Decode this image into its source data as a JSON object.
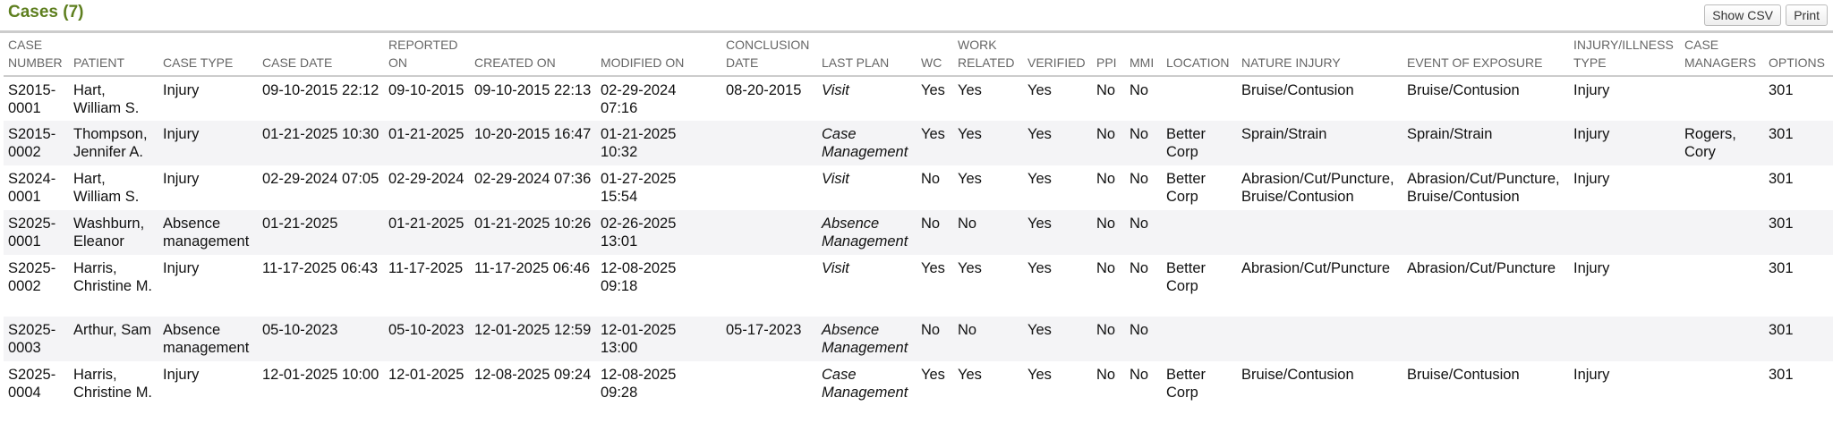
{
  "header": {
    "title": "Cases (7)",
    "buttons": [
      "Show CSV",
      "Print"
    ]
  },
  "table": {
    "columns": [
      "CASE NUMBER",
      "PATIENT",
      "CASE TYPE",
      "CASE DATE",
      "REPORTED ON",
      "CREATED ON",
      "MODIFIED ON",
      "CONCLUSION DATE",
      "LAST PLAN",
      "WC",
      "WORK RELATED",
      "VERIFIED",
      "PPI",
      "MMI",
      "LOCATION",
      "NATURE INJURY",
      "EVENT OF EXPOSURE",
      "INJURY/ILLNESS TYPE",
      "CASE MANAGERS",
      "OPTIONS"
    ],
    "rows": [
      [
        "S2015-0001",
        "Hart, William S.",
        "Injury",
        "09-10-2015 22:12",
        "09-10-2015",
        "09-10-2015 22:13",
        "02-29-2024 07:16",
        "08-20-2015",
        "Visit",
        "Yes",
        "Yes",
        "Yes",
        "No",
        "No",
        null,
        "Bruise/Contusion",
        "Bruise/Contusion",
        "Injury",
        null,
        "301"
      ],
      [
        "S2015-0002",
        "Thompson, Jennifer A.",
        "Injury",
        "01-21-2025 10:30",
        "01-21-2025",
        "10-20-2015 16:47",
        "01-21-2025 10:32",
        null,
        "Case Management",
        "Yes",
        "Yes",
        "Yes",
        "No",
        "No",
        "Better Corp",
        "Sprain/Strain",
        "Sprain/Strain",
        "Injury",
        "Rogers, Cory",
        "301"
      ],
      [
        "S2024-0001",
        "Hart, William S.",
        "Injury",
        "02-29-2024 07:05",
        "02-29-2024",
        "02-29-2024 07:36",
        "01-27-2025 15:54",
        null,
        "Visit",
        "No",
        "Yes",
        "Yes",
        "No",
        "No",
        "Better Corp",
        "Abrasion/Cut/Puncture, Bruise/Contusion",
        "Abrasion/Cut/Puncture, Bruise/Contusion",
        "Injury",
        null,
        "301"
      ],
      [
        "S2025-0001",
        "Washburn, Eleanor",
        "Absence management",
        "01-21-2025",
        "01-21-2025",
        "01-21-2025 10:26",
        "02-26-2025 13:01",
        null,
        "Absence Management",
        "No",
        "No",
        "Yes",
        "No",
        "No",
        null,
        null,
        null,
        null,
        null,
        "301"
      ],
      [
        "S2025-0002",
        "Harris, Christine M.",
        "Injury",
        "11-17-2025 06:43",
        "11-17-2025",
        "11-17-2025 06:46",
        "12-08-2025 09:18",
        null,
        "Visit",
        "Yes",
        "Yes",
        "Yes",
        "No",
        "No",
        "Better Corp",
        "Abrasion/Cut/Puncture",
        "Abrasion/Cut/Puncture",
        "Injury",
        null,
        "301"
      ],
      [
        "S2025-0003",
        "Arthur, Sam",
        "Absence management",
        "05-10-2023",
        "05-10-2023",
        "12-01-2025 12:59",
        "12-01-2025 13:00",
        "05-17-2023",
        "Absence Management",
        "No",
        "No",
        "Yes",
        "No",
        "No",
        null,
        null,
        null,
        null,
        null,
        "301"
      ],
      [
        "S2025-0004",
        "Harris, Christine M.",
        "Injury",
        "12-01-2025 10:00",
        "12-01-2025",
        "12-08-2025 09:24",
        "12-08-2025 09:28",
        null,
        "Case Management",
        "Yes",
        "Yes",
        "Yes",
        "No",
        "No",
        "Better Corp",
        "Bruise/Contusion",
        "Bruise/Contusion",
        "Injury",
        null,
        "301"
      ]
    ]
  }
}
